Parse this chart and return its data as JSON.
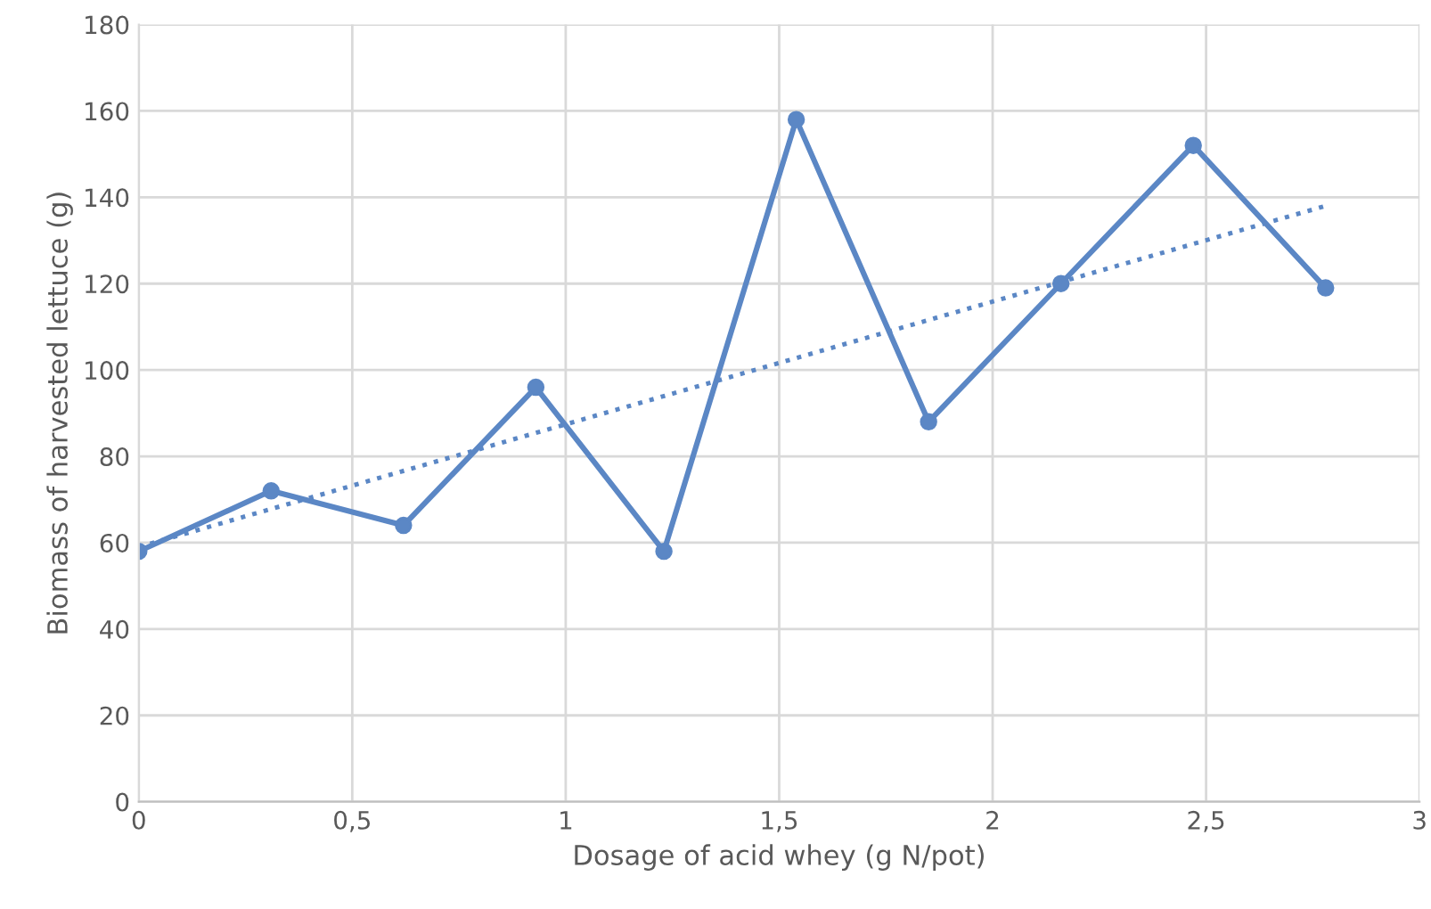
{
  "chart_data": {
    "type": "line",
    "xlabel": "Dosage of acid whey (g N/pot)",
    "ylabel": "Biomass of harvested lettuce (g)",
    "x": [
      0,
      0.31,
      0.62,
      0.93,
      1.23,
      1.54,
      1.85,
      2.16,
      2.47,
      2.78
    ],
    "series": [
      {
        "color": "#5b87c5",
        "values": [
          58,
          72,
          64,
          96,
          58,
          158,
          88,
          120,
          152,
          119
        ],
        "marker": "circle",
        "line_style": "solid"
      },
      {
        "type": "line",
        "x": [
          0,
          2.78
        ],
        "color": "#5b87c5",
        "values": [
          59,
          138
        ],
        "marker": "none",
        "line_style": "dotted"
      }
    ],
    "xlim": [
      0,
      3
    ],
    "xticks": [
      0,
      {
        "value": 0.5,
        "label": "0,5"
      },
      1,
      {
        "value": 1.5,
        "label": "1,5"
      },
      2,
      {
        "value": 2.5,
        "label": "2,5"
      },
      3
    ],
    "ylim": [
      0,
      180
    ],
    "yticks": [
      0,
      20,
      40,
      60,
      80,
      100,
      120,
      140,
      160,
      180
    ],
    "grid": true
  }
}
